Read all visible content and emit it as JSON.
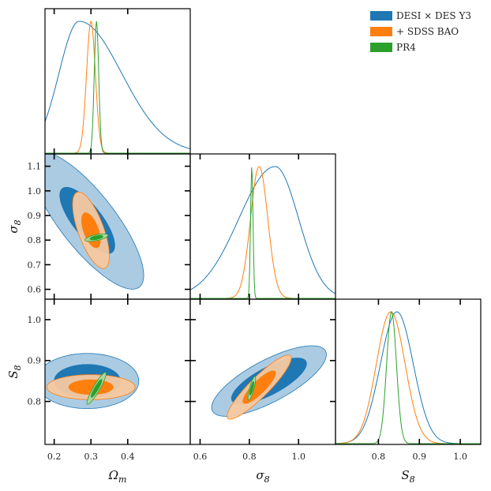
{
  "chart_data": {
    "type": "triangle-corner",
    "parameters": [
      {
        "key": "Om",
        "label": "Ω",
        "subscript": "m",
        "range": [
          0.175,
          0.57
        ],
        "ticks": [
          0.2,
          0.3,
          0.4
        ],
        "tick_labels": [
          "0.2",
          "0.3",
          "0.4"
        ]
      },
      {
        "key": "s8",
        "label": "σ",
        "subscript": "8",
        "range": [
          0.56,
          1.15
        ],
        "ticks": [
          0.6,
          0.7,
          0.8,
          0.9,
          1.0,
          1.1
        ],
        "tick_labels": [
          "0.6",
          "0.7",
          "0.8",
          "0.9",
          "1.0",
          "1.1"
        ],
        "bottom_ticks": [
          0.6,
          0.8,
          1.0
        ],
        "bottom_tick_labels": [
          "0.6",
          "0.8",
          "1.0"
        ]
      },
      {
        "key": "S8",
        "label": "S",
        "subscript": "8",
        "range": [
          0.695,
          1.05
        ],
        "ticks": [
          0.8,
          0.9,
          1.0
        ],
        "tick_labels": [
          "0.8",
          "0.9",
          "1.0"
        ]
      }
    ],
    "legend": {
      "position": "top-right"
    },
    "series": [
      {
        "name": "DESI × DES Y3",
        "color": "#1f77b4",
        "mean": {
          "Om": 0.29,
          "s8": 0.88,
          "S8": 0.845
        },
        "marginal_sd": {
          "Om": 0.055,
          "s8": 0.095,
          "S8": 0.04
        },
        "marginal_peak": {
          "Om": 0.268,
          "s8": 0.905,
          "S8": 0.845
        },
        "contours": {
          "Om_s8": {
            "center": [
              0.29,
              0.88
            ],
            "angle_deg": -52,
            "semi_major": [
              0.11,
              0.23
            ],
            "semi_minor": [
              0.04,
              0.075
            ]
          },
          "Om_S8": {
            "center": [
              0.29,
              0.85
            ],
            "angle_deg": 0,
            "semi_major": [
              0.09,
              0.14
            ],
            "semi_minor": [
              0.045,
              0.075
            ]
          },
          "s8_S8": {
            "center": [
              0.88,
              0.85
            ],
            "angle_deg": 28,
            "semi_major": [
              0.17,
              0.26
            ],
            "semi_minor": [
              0.055,
              0.085
            ]
          }
        }
      },
      {
        "name": "+ SDSS BAO",
        "color": "#ff7f0e",
        "mean": {
          "Om": 0.3,
          "s8": 0.84,
          "S8": 0.835
        },
        "marginal_sd": {
          "Om": 0.012,
          "s8": 0.035,
          "S8": 0.035
        },
        "marginal_peak": {
          "Om": 0.3,
          "s8": 0.84,
          "S8": 0.83
        },
        "contours": {
          "Om_s8": {
            "center": [
              0.3,
              0.84
            ],
            "angle_deg": -70,
            "semi_major": [
              0.05,
              0.11
            ],
            "semi_minor": [
              0.02,
              0.035
            ]
          },
          "Om_S8": {
            "center": [
              0.3,
              0.835
            ],
            "angle_deg": 0,
            "semi_major": [
              0.06,
              0.12
            ],
            "semi_minor": [
              0.02,
              0.034
            ]
          },
          "s8_S8": {
            "center": [
              0.84,
              0.835
            ],
            "angle_deg": 45,
            "semi_major": [
              0.09,
              0.18
            ],
            "semi_minor": [
              0.025,
              0.04
            ]
          }
        }
      },
      {
        "name": "PR4",
        "color": "#2ca02c",
        "mean": {
          "Om": 0.315,
          "s8": 0.81,
          "S8": 0.832
        },
        "marginal_sd": {
          "Om": 0.006,
          "s8": 0.005,
          "S8": 0.012
        },
        "marginal_peak": {
          "Om": 0.315,
          "s8": 0.81,
          "S8": 0.832
        },
        "contours": {
          "Om_s8": {
            "center": [
              0.315,
              0.81
            ],
            "angle_deg": 12,
            "semi_major": [
              0.018,
              0.032
            ],
            "semi_minor": [
              0.005,
              0.008
            ]
          },
          "Om_S8": {
            "center": [
              0.315,
              0.832
            ],
            "angle_deg": 60,
            "semi_major": [
              0.028,
              0.05
            ],
            "semi_minor": [
              0.005,
              0.009
            ]
          },
          "s8_S8": {
            "center": [
              0.81,
              0.832
            ],
            "angle_deg": 75,
            "semi_major": [
              0.028,
              0.05
            ],
            "semi_minor": [
              0.005,
              0.009
            ]
          }
        }
      }
    ]
  }
}
